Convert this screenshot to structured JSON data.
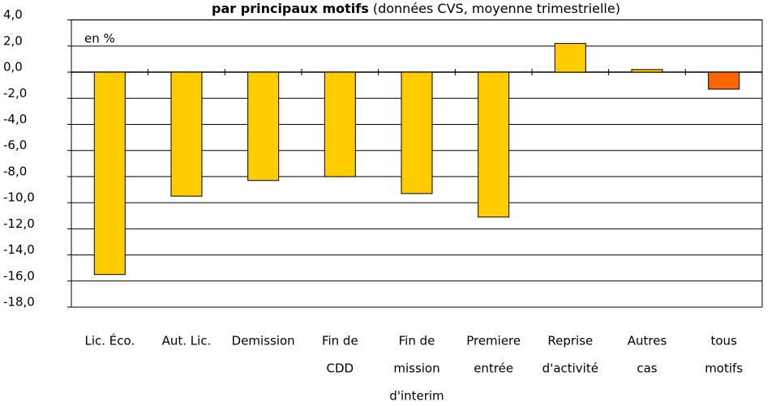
{
  "chart_data": {
    "type": "bar",
    "title": "par principaux motifs",
    "subtitle": "(données CVS, moyenne trimestrielle)",
    "annotation": "en %",
    "categories": [
      [
        "Lic. Éco."
      ],
      [
        "Aut. Lic."
      ],
      [
        "Demission"
      ],
      [
        "Fin de",
        "CDD"
      ],
      [
        "Fin de",
        "mission",
        "d'interim"
      ],
      [
        "Premiere",
        "entrée"
      ],
      [
        "Reprise",
        "d'activité"
      ],
      [
        "Autres",
        "cas"
      ],
      [
        "tous",
        "motifs"
      ]
    ],
    "values": [
      -15.5,
      -9.5,
      -8.3,
      -8.0,
      -9.3,
      -11.1,
      2.2,
      0.2,
      -1.3
    ],
    "colors": [
      "#ffcc00",
      "#ffcc00",
      "#ffcc00",
      "#ffcc00",
      "#ffcc00",
      "#ffcc00",
      "#ffcc00",
      "#ffcc00",
      "#ff6600"
    ],
    "ylim": [
      -18,
      4
    ],
    "yticks": [
      {
        "value": 4,
        "label": "4,0"
      },
      {
        "value": 2,
        "label": "2,0"
      },
      {
        "value": 0,
        "label": "0,0"
      },
      {
        "value": -2,
        "label": "-2,0"
      },
      {
        "value": -4,
        "label": "-4,0"
      },
      {
        "value": -6,
        "label": "-6,0"
      },
      {
        "value": -8,
        "label": "-8,0"
      },
      {
        "value": -10,
        "label": "-10,0"
      },
      {
        "value": -12,
        "label": "-12,0"
      },
      {
        "value": -14,
        "label": "-14,0"
      },
      {
        "value": -16,
        "label": "-16,0"
      },
      {
        "value": -18,
        "label": "-18,0"
      }
    ],
    "grid": true
  }
}
